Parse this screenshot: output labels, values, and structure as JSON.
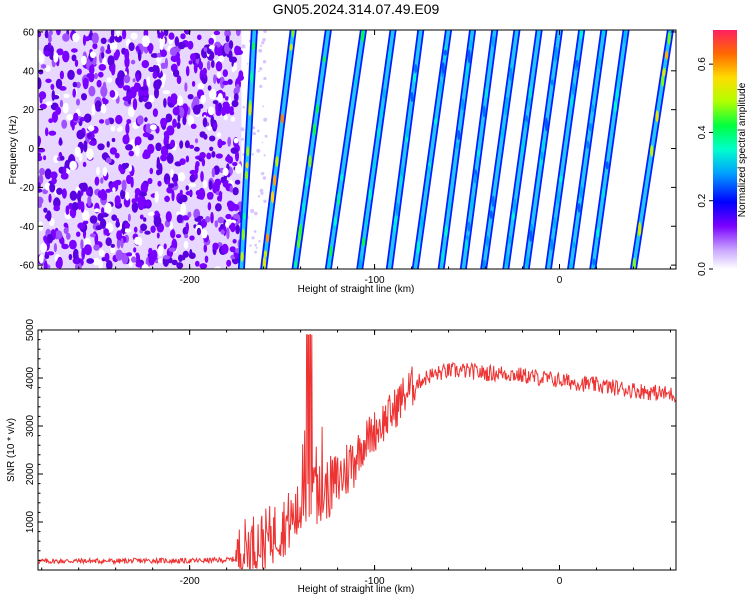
{
  "title": "GN05.2024.314.07.49.E09",
  "colors": {
    "snr_line": "#ee3333",
    "axis": "#000000"
  },
  "chart_data": [
    {
      "type": "heatmap",
      "title": "GN05.2024.314.07.49.E09",
      "xlabel": "Height of straight line (km)",
      "ylabel": "Frequency (Hz)",
      "xlim": [
        -282,
        63
      ],
      "ylim": [
        -62,
        61
      ],
      "x_ticks": [
        -200,
        -100,
        0
      ],
      "y_ticks": [
        60,
        40,
        20,
        0,
        -20,
        -40,
        -60
      ],
      "x_tick_labels": [
        "-200",
        "-100",
        "0"
      ],
      "y_tick_labels": [
        "60",
        "40",
        "20",
        "0",
        "-20",
        "-40",
        "-60"
      ],
      "noise_region_x": [
        -282,
        -172
      ],
      "stripes": [
        {
          "x_at_f_min": -172,
          "x_at_f_max": -165,
          "peak": 0.45
        },
        {
          "x_at_f_min": -160,
          "x_at_f_max": -144,
          "peak": 0.55
        },
        {
          "x_at_f_min": -143,
          "x_at_f_max": -125,
          "peak": 0.4
        },
        {
          "x_at_f_min": -125,
          "x_at_f_max": -106,
          "peak": 0.35
        },
        {
          "x_at_f_min": -108,
          "x_at_f_max": -90,
          "peak": 0.35
        },
        {
          "x_at_f_min": -92,
          "x_at_f_max": -75,
          "peak": 0.3
        },
        {
          "x_at_f_min": -78,
          "x_at_f_max": -60,
          "peak": 0.3
        },
        {
          "x_at_f_min": -64,
          "x_at_f_max": -47,
          "peak": 0.3
        },
        {
          "x_at_f_min": -52,
          "x_at_f_max": -35,
          "peak": 0.3
        },
        {
          "x_at_f_min": -41,
          "x_at_f_max": -23,
          "peak": 0.3
        },
        {
          "x_at_f_min": -29,
          "x_at_f_max": -11,
          "peak": 0.3
        },
        {
          "x_at_f_min": -18,
          "x_at_f_max": 0,
          "peak": 0.3
        },
        {
          "x_at_f_min": -6,
          "x_at_f_max": 12,
          "peak": 0.3
        },
        {
          "x_at_f_min": 6,
          "x_at_f_max": 24,
          "peak": 0.3
        },
        {
          "x_at_f_min": 18,
          "x_at_f_max": 36,
          "peak": 0.3
        },
        {
          "x_at_f_min": 40,
          "x_at_f_max": 60,
          "peak": 0.5
        }
      ],
      "colorbar": {
        "label": "Normalized spectral amplitude",
        "range": [
          0,
          0.7
        ],
        "ticks": [
          0.0,
          0.2,
          0.4,
          0.6
        ],
        "tick_labels": [
          "0.0",
          "0.2",
          "0.4",
          "0.6"
        ]
      }
    },
    {
      "type": "line",
      "xlabel": "Height of straight line (km)",
      "ylabel": "SNR (10 * v/v)",
      "xlim": [
        -282,
        63
      ],
      "ylim": [
        0,
        5000
      ],
      "x_ticks": [
        -200,
        -100,
        0
      ],
      "y_ticks": [
        1000,
        2000,
        3000,
        4000,
        5000
      ],
      "x_tick_labels": [
        "-200",
        "-100",
        "0"
      ],
      "y_tick_labels": [
        "1000",
        "2000",
        "3000",
        "4000",
        "5000"
      ],
      "series": [
        {
          "x": [
            -282,
            -260,
            -240,
            -220,
            -200,
            -190,
            -180,
            -175,
            -170,
            -165,
            -160,
            -155,
            -150,
            -145,
            -140,
            -137,
            -134,
            -130,
            -125,
            -120,
            -115,
            -110,
            -105,
            -100,
            -95,
            -90,
            -85,
            -80,
            -75,
            -70,
            -65,
            -60,
            -50,
            -40,
            -30,
            -20,
            -10,
            0,
            10,
            20,
            30,
            40,
            50,
            63
          ],
          "y": [
            180,
            190,
            185,
            195,
            190,
            200,
            210,
            230,
            450,
            550,
            600,
            750,
            900,
            1050,
            1200,
            1400,
            1500,
            1550,
            1700,
            1850,
            2100,
            2400,
            2700,
            2900,
            3100,
            3300,
            3600,
            3800,
            3950,
            4050,
            4100,
            4150,
            4150,
            4100,
            4100,
            4050,
            4000,
            3950,
            3900,
            3850,
            3800,
            3750,
            3700,
            3650
          ]
        }
      ]
    }
  ]
}
